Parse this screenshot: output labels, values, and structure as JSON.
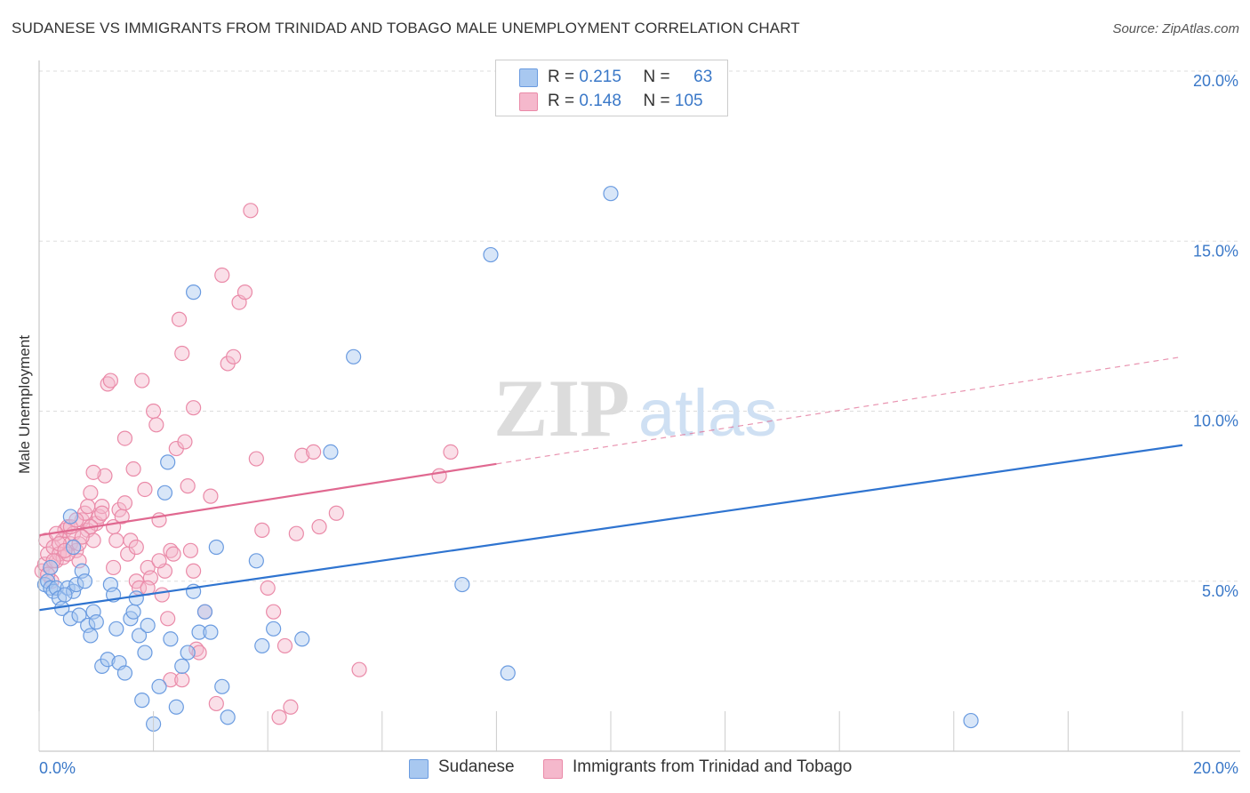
{
  "header": {
    "title": "SUDANESE VS IMMIGRANTS FROM TRINIDAD AND TOBAGO MALE UNEMPLOYMENT CORRELATION CHART",
    "source": "Source: ZipAtlas.com"
  },
  "watermark": {
    "zip": "ZIP",
    "atlas": "atlas"
  },
  "legend": {
    "rows": [
      {
        "r_label": "R =",
        "r_value": "0.215",
        "n_label": "N =",
        "n_value": "63"
      },
      {
        "r_label": "R =",
        "r_value": "0.148",
        "n_label": "N =",
        "n_value": "105"
      }
    ]
  },
  "colors": {
    "blue_fill": "#a8c8f0",
    "blue_stroke": "#6a9be0",
    "blue_line": "#2f74d0",
    "pink_fill": "#f5b8cc",
    "pink_stroke": "#ea8aa8",
    "pink_line": "#e06890",
    "grid": "#dddddd",
    "tick_label": "#3a78c8"
  },
  "chart_data": {
    "type": "scatter",
    "title": "SUDANESE VS IMMIGRANTS FROM TRINIDAD AND TOBAGO MALE UNEMPLOYMENT CORRELATION CHART",
    "xlabel": "",
    "ylabel": "Male Unemployment",
    "xlim": [
      0,
      20
    ],
    "ylim": [
      0,
      20
    ],
    "x_tick_labels": [
      "0.0%",
      "20.0%"
    ],
    "y_ticks": [
      5,
      10,
      15,
      20
    ],
    "y_tick_labels": [
      "5.0%",
      "10.0%",
      "15.0%",
      "20.0%"
    ],
    "grid": true,
    "legend_placement": "top-center",
    "series": [
      {
        "name": "Sudanese",
        "color": "#a8c8f0",
        "r": 0.215,
        "n": 63,
        "trend": {
          "x": [
            0,
            20
          ],
          "y": [
            4.15,
            9.0
          ],
          "dashed_from": null
        },
        "points": [
          [
            0.1,
            4.9
          ],
          [
            0.15,
            5.0
          ],
          [
            0.2,
            4.8
          ],
          [
            0.25,
            4.7
          ],
          [
            0.3,
            4.8
          ],
          [
            0.35,
            4.5
          ],
          [
            0.4,
            4.2
          ],
          [
            0.5,
            4.8
          ],
          [
            0.6,
            4.7
          ],
          [
            0.45,
            4.6
          ],
          [
            0.55,
            3.9
          ],
          [
            0.7,
            4.0
          ],
          [
            0.65,
            4.9
          ],
          [
            0.75,
            5.3
          ],
          [
            0.8,
            5.0
          ],
          [
            0.85,
            3.7
          ],
          [
            0.9,
            3.4
          ],
          [
            0.95,
            4.1
          ],
          [
            1.0,
            3.8
          ],
          [
            1.1,
            2.5
          ],
          [
            1.2,
            2.7
          ],
          [
            1.25,
            4.9
          ],
          [
            1.3,
            4.6
          ],
          [
            1.35,
            3.6
          ],
          [
            1.4,
            2.6
          ],
          [
            1.5,
            2.3
          ],
          [
            1.6,
            3.9
          ],
          [
            1.65,
            4.1
          ],
          [
            1.7,
            4.5
          ],
          [
            1.75,
            3.4
          ],
          [
            1.8,
            1.5
          ],
          [
            1.85,
            2.9
          ],
          [
            1.9,
            3.7
          ],
          [
            2.0,
            0.8
          ],
          [
            2.1,
            1.9
          ],
          [
            2.2,
            7.6
          ],
          [
            2.25,
            8.5
          ],
          [
            2.3,
            3.3
          ],
          [
            2.4,
            1.3
          ],
          [
            2.5,
            2.5
          ],
          [
            2.6,
            2.9
          ],
          [
            2.7,
            4.7
          ],
          [
            2.8,
            3.5
          ],
          [
            2.9,
            4.1
          ],
          [
            3.0,
            3.5
          ],
          [
            3.1,
            6.0
          ],
          [
            3.2,
            1.9
          ],
          [
            3.3,
            1.0
          ],
          [
            3.8,
            5.6
          ],
          [
            3.9,
            3.1
          ],
          [
            4.1,
            3.6
          ],
          [
            4.6,
            3.3
          ],
          [
            5.1,
            8.8
          ],
          [
            5.5,
            11.6
          ],
          [
            0.6,
            6.0
          ],
          [
            0.55,
            6.9
          ],
          [
            2.7,
            13.5
          ],
          [
            7.4,
            4.9
          ],
          [
            8.2,
            2.3
          ],
          [
            7.9,
            14.6
          ],
          [
            10.0,
            16.4
          ],
          [
            16.3,
            0.9
          ],
          [
            0.2,
            5.4
          ]
        ]
      },
      {
        "name": "Immigrants from Trinidad and Tobago",
        "color": "#f5b8cc",
        "r": 0.148,
        "n": 105,
        "trend": {
          "x": [
            0,
            20
          ],
          "y": [
            6.35,
            11.6
          ],
          "dashed_from": 8.0
        },
        "points": [
          [
            0.05,
            5.3
          ],
          [
            0.1,
            5.5
          ],
          [
            0.12,
            6.2
          ],
          [
            0.15,
            5.8
          ],
          [
            0.2,
            5.4
          ],
          [
            0.22,
            5.0
          ],
          [
            0.25,
            6.0
          ],
          [
            0.3,
            5.6
          ],
          [
            0.35,
            5.8
          ],
          [
            0.4,
            6.2
          ],
          [
            0.42,
            5.7
          ],
          [
            0.45,
            6.5
          ],
          [
            0.5,
            6.6
          ],
          [
            0.55,
            6.1
          ],
          [
            0.6,
            6.4
          ],
          [
            0.65,
            5.9
          ],
          [
            0.7,
            5.6
          ],
          [
            0.75,
            6.8
          ],
          [
            0.8,
            7.0
          ],
          [
            0.85,
            6.5
          ],
          [
            0.9,
            7.6
          ],
          [
            0.95,
            6.2
          ],
          [
            1.0,
            6.7
          ],
          [
            1.05,
            6.9
          ],
          [
            1.1,
            7.2
          ],
          [
            1.15,
            8.1
          ],
          [
            1.2,
            10.8
          ],
          [
            1.25,
            10.9
          ],
          [
            1.3,
            6.6
          ],
          [
            1.35,
            6.2
          ],
          [
            1.4,
            7.1
          ],
          [
            1.45,
            6.9
          ],
          [
            1.5,
            9.2
          ],
          [
            1.55,
            5.8
          ],
          [
            1.6,
            6.2
          ],
          [
            1.65,
            8.3
          ],
          [
            1.7,
            5.0
          ],
          [
            1.75,
            4.8
          ],
          [
            1.8,
            10.9
          ],
          [
            1.85,
            7.7
          ],
          [
            1.9,
            5.4
          ],
          [
            1.95,
            5.1
          ],
          [
            2.0,
            10.0
          ],
          [
            2.05,
            9.6
          ],
          [
            2.1,
            6.8
          ],
          [
            2.15,
            4.6
          ],
          [
            2.2,
            5.3
          ],
          [
            2.25,
            3.9
          ],
          [
            2.3,
            5.9
          ],
          [
            2.35,
            5.8
          ],
          [
            2.4,
            8.9
          ],
          [
            2.45,
            12.7
          ],
          [
            2.5,
            11.7
          ],
          [
            2.55,
            9.1
          ],
          [
            2.6,
            7.8
          ],
          [
            2.65,
            5.9
          ],
          [
            2.7,
            5.3
          ],
          [
            2.75,
            3.0
          ],
          [
            2.8,
            2.9
          ],
          [
            2.9,
            4.1
          ],
          [
            3.0,
            7.5
          ],
          [
            3.1,
            1.4
          ],
          [
            3.2,
            14.0
          ],
          [
            3.3,
            11.4
          ],
          [
            3.4,
            11.6
          ],
          [
            3.5,
            13.2
          ],
          [
            3.6,
            13.5
          ],
          [
            3.7,
            15.9
          ],
          [
            3.8,
            8.6
          ],
          [
            3.9,
            6.5
          ],
          [
            4.0,
            4.8
          ],
          [
            4.1,
            4.1
          ],
          [
            4.2,
            1.0
          ],
          [
            4.3,
            3.1
          ],
          [
            4.4,
            1.3
          ],
          [
            4.5,
            6.4
          ],
          [
            4.6,
            8.7
          ],
          [
            4.8,
            8.8
          ],
          [
            4.9,
            6.6
          ],
          [
            5.2,
            7.0
          ],
          [
            5.6,
            2.4
          ],
          [
            7.0,
            8.1
          ],
          [
            7.2,
            8.8
          ],
          [
            0.3,
            6.4
          ],
          [
            0.5,
            5.8
          ],
          [
            0.7,
            6.1
          ],
          [
            0.9,
            6.6
          ],
          [
            1.1,
            7.0
          ],
          [
            1.3,
            5.4
          ],
          [
            1.5,
            7.3
          ],
          [
            1.7,
            6.0
          ],
          [
            1.9,
            4.8
          ],
          [
            2.1,
            5.6
          ],
          [
            2.3,
            2.1
          ],
          [
            2.5,
            2.1
          ],
          [
            2.7,
            10.1
          ],
          [
            0.15,
            5.2
          ],
          [
            0.25,
            5.6
          ],
          [
            0.35,
            6.1
          ],
          [
            0.45,
            5.9
          ],
          [
            0.55,
            6.6
          ],
          [
            0.65,
            6.8
          ],
          [
            0.75,
            6.3
          ],
          [
            0.85,
            7.2
          ],
          [
            0.95,
            8.2
          ]
        ]
      }
    ]
  }
}
